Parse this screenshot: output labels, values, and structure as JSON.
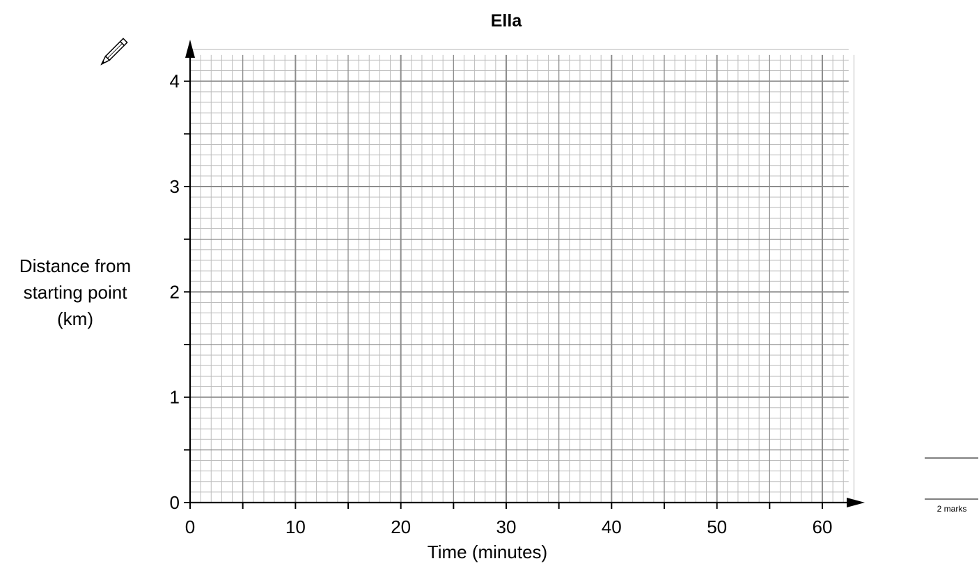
{
  "chart_data": {
    "type": "line",
    "title": "Ella",
    "xlabel": "Time (minutes)",
    "ylabel_lines": [
      "Distance from",
      "starting point",
      "(km)"
    ],
    "x_ticks": [
      0,
      10,
      20,
      30,
      40,
      50,
      60
    ],
    "y_ticks": [
      0,
      1,
      2,
      3,
      4
    ],
    "xlim": [
      0,
      62.5
    ],
    "ylim": [
      0,
      4.25
    ],
    "x_minor_step": 1,
    "y_minor_step": 0.1,
    "x_mid_step": 5,
    "y_mid_step": 0.5,
    "grid": true,
    "series": []
  },
  "marks_box": {
    "label": "2 marks"
  },
  "icons": {
    "pencil": "pencil-icon"
  },
  "colors": {
    "grid_minor": "#bdbdbd",
    "grid_major": "#8c8c8c",
    "axis": "#000000"
  }
}
